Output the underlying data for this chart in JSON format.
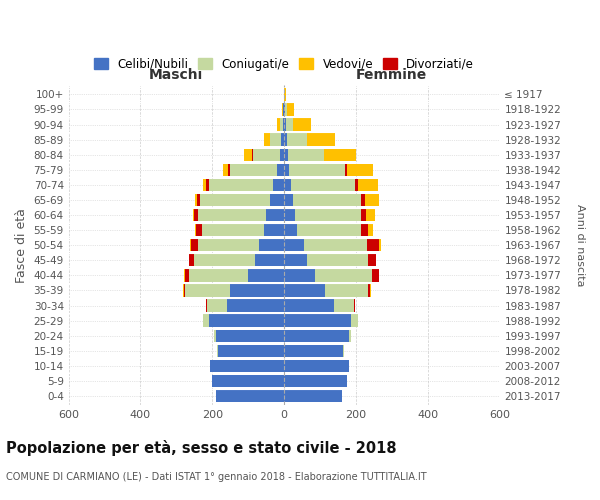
{
  "age_groups": [
    "0-4",
    "5-9",
    "10-14",
    "15-19",
    "20-24",
    "25-29",
    "30-34",
    "35-39",
    "40-44",
    "45-49",
    "50-54",
    "55-59",
    "60-64",
    "65-69",
    "70-74",
    "75-79",
    "80-84",
    "85-89",
    "90-94",
    "95-99",
    "100+"
  ],
  "birth_years": [
    "2013-2017",
    "2008-2012",
    "2003-2007",
    "1998-2002",
    "1993-1997",
    "1988-1992",
    "1983-1987",
    "1978-1982",
    "1973-1977",
    "1968-1972",
    "1963-1967",
    "1958-1962",
    "1953-1957",
    "1948-1952",
    "1943-1947",
    "1938-1942",
    "1933-1937",
    "1928-1932",
    "1923-1927",
    "1918-1922",
    "≤ 1917"
  ],
  "colors": {
    "celibi": "#4472c4",
    "coniugati": "#c5d9a0",
    "vedovi": "#ffc000",
    "divorziati": "#cc0000"
  },
  "maschi": {
    "celibi": [
      190,
      200,
      205,
      185,
      190,
      210,
      160,
      150,
      100,
      80,
      70,
      55,
      50,
      40,
      30,
      20,
      12,
      8,
      4,
      2,
      1
    ],
    "coniugati": [
      0,
      0,
      0,
      1,
      5,
      15,
      55,
      125,
      165,
      170,
      170,
      175,
      190,
      195,
      180,
      130,
      75,
      30,
      8,
      2,
      0
    ],
    "vedovi": [
      0,
      0,
      0,
      0,
      0,
      0,
      1,
      1,
      1,
      1,
      1,
      2,
      3,
      5,
      8,
      15,
      25,
      18,
      8,
      3,
      0
    ],
    "divorziati": [
      0,
      0,
      0,
      0,
      0,
      1,
      2,
      5,
      12,
      15,
      20,
      15,
      10,
      8,
      8,
      5,
      1,
      0,
      0,
      0,
      0
    ]
  },
  "femmine": {
    "celibi": [
      160,
      175,
      180,
      165,
      180,
      185,
      140,
      115,
      85,
      65,
      55,
      35,
      30,
      25,
      18,
      14,
      10,
      8,
      5,
      2,
      1
    ],
    "coniugati": [
      0,
      0,
      0,
      1,
      5,
      20,
      55,
      120,
      160,
      170,
      175,
      180,
      185,
      190,
      180,
      155,
      100,
      55,
      20,
      5,
      0
    ],
    "vedovi": [
      0,
      0,
      0,
      0,
      0,
      0,
      0,
      1,
      1,
      2,
      5,
      15,
      25,
      40,
      55,
      75,
      90,
      80,
      50,
      20,
      5
    ],
    "divorziati": [
      0,
      0,
      0,
      0,
      0,
      1,
      2,
      5,
      18,
      20,
      35,
      18,
      12,
      10,
      8,
      5,
      1,
      0,
      0,
      0,
      0
    ]
  },
  "xlim": 600,
  "title": "Popolazione per età, sesso e stato civile - 2018",
  "subtitle": "COMUNE DI CARMIANO (LE) - Dati ISTAT 1° gennaio 2018 - Elaborazione TUTTITALIA.IT",
  "ylabel_left": "Fasce di età",
  "ylabel_right": "Anni di nascita",
  "xlabel_maschi": "Maschi",
  "xlabel_femmine": "Femmine",
  "legend_labels": [
    "Celibi/Nubili",
    "Coniugati/e",
    "Vedovi/e",
    "Divorziati/e"
  ]
}
